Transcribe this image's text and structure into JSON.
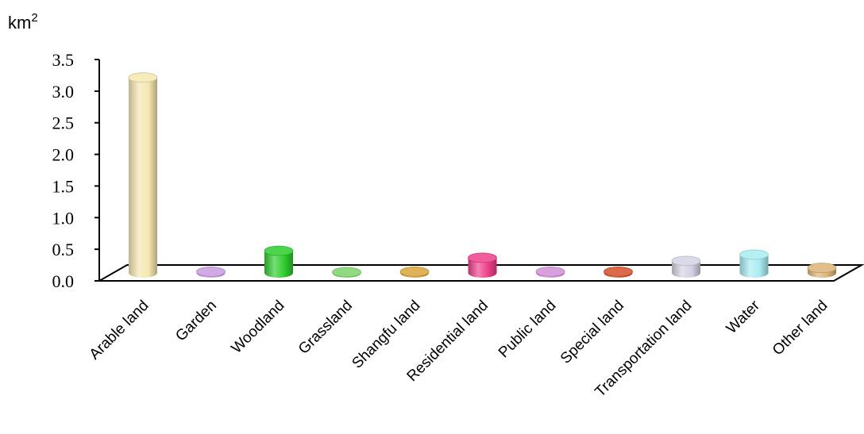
{
  "chart_data": {
    "type": "bar",
    "ylabel": "km²",
    "unit_base": "km",
    "unit_exp": "2",
    "ylim": [
      0,
      3.5
    ],
    "yticks": [
      "0.0",
      "0.5",
      "1.0",
      "1.5",
      "2.0",
      "2.5",
      "3.0",
      "3.5"
    ],
    "categories": [
      "Arable land",
      "Garden",
      "Woodland",
      "Grassland",
      "Shangfu land",
      "Residential land",
      "Public land",
      "Special land",
      "Transportation land",
      "Water",
      "Other land"
    ],
    "values": [
      3.09,
      0.02,
      0.35,
      0.01,
      0.02,
      0.24,
      0.02,
      0.02,
      0.19,
      0.29,
      0.08
    ],
    "colors": [
      "#f6e7b0",
      "#c89be0",
      "#2ecc2e",
      "#7ed36a",
      "#d9a43a",
      "#ee3f8a",
      "#d28fd8",
      "#d5502a",
      "#d4d2e4",
      "#a8ecf2",
      "#dcb375"
    ],
    "grid": false,
    "legend": "none"
  }
}
